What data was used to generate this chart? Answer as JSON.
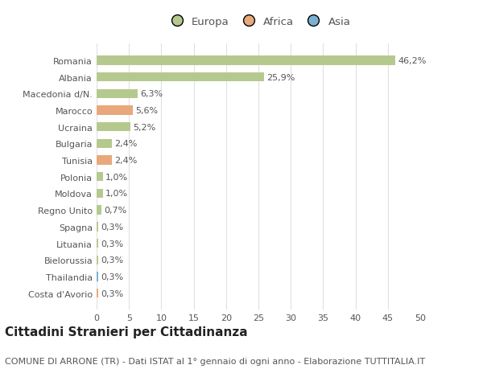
{
  "title": "Cittadini Stranieri per Cittadinanza",
  "subtitle": "COMUNE DI ARRONE (TR) - Dati ISTAT al 1° gennaio di ogni anno - Elaborazione TUTTITALIA.IT",
  "categories": [
    "Romania",
    "Albania",
    "Macedonia d/N.",
    "Marocco",
    "Ucraina",
    "Bulgaria",
    "Tunisia",
    "Polonia",
    "Moldova",
    "Regno Unito",
    "Spagna",
    "Lituania",
    "Bielorussia",
    "Thailandia",
    "Costa d'Avorio"
  ],
  "values": [
    46.2,
    25.9,
    6.3,
    5.6,
    5.2,
    2.4,
    2.4,
    1.0,
    1.0,
    0.7,
    0.3,
    0.3,
    0.3,
    0.3,
    0.3
  ],
  "labels": [
    "46,2%",
    "25,9%",
    "6,3%",
    "5,6%",
    "5,2%",
    "2,4%",
    "2,4%",
    "1,0%",
    "1,0%",
    "0,7%",
    "0,3%",
    "0,3%",
    "0,3%",
    "0,3%",
    "0,3%"
  ],
  "continents": [
    "Europa",
    "Europa",
    "Europa",
    "Africa",
    "Europa",
    "Europa",
    "Africa",
    "Europa",
    "Europa",
    "Europa",
    "Europa",
    "Europa",
    "Europa",
    "Asia",
    "Africa"
  ],
  "colors": {
    "Europa": "#b5c98e",
    "Africa": "#e8a87c",
    "Asia": "#7bafd4"
  },
  "legend_order": [
    "Europa",
    "Africa",
    "Asia"
  ],
  "xlim": [
    0,
    50
  ],
  "xticks": [
    0,
    5,
    10,
    15,
    20,
    25,
    30,
    35,
    40,
    45,
    50
  ],
  "background_color": "#ffffff",
  "grid_color": "#e0e0e0",
  "bar_height": 0.55,
  "title_fontsize": 11,
  "subtitle_fontsize": 8,
  "label_fontsize": 8,
  "tick_fontsize": 8,
  "legend_fontsize": 9.5
}
